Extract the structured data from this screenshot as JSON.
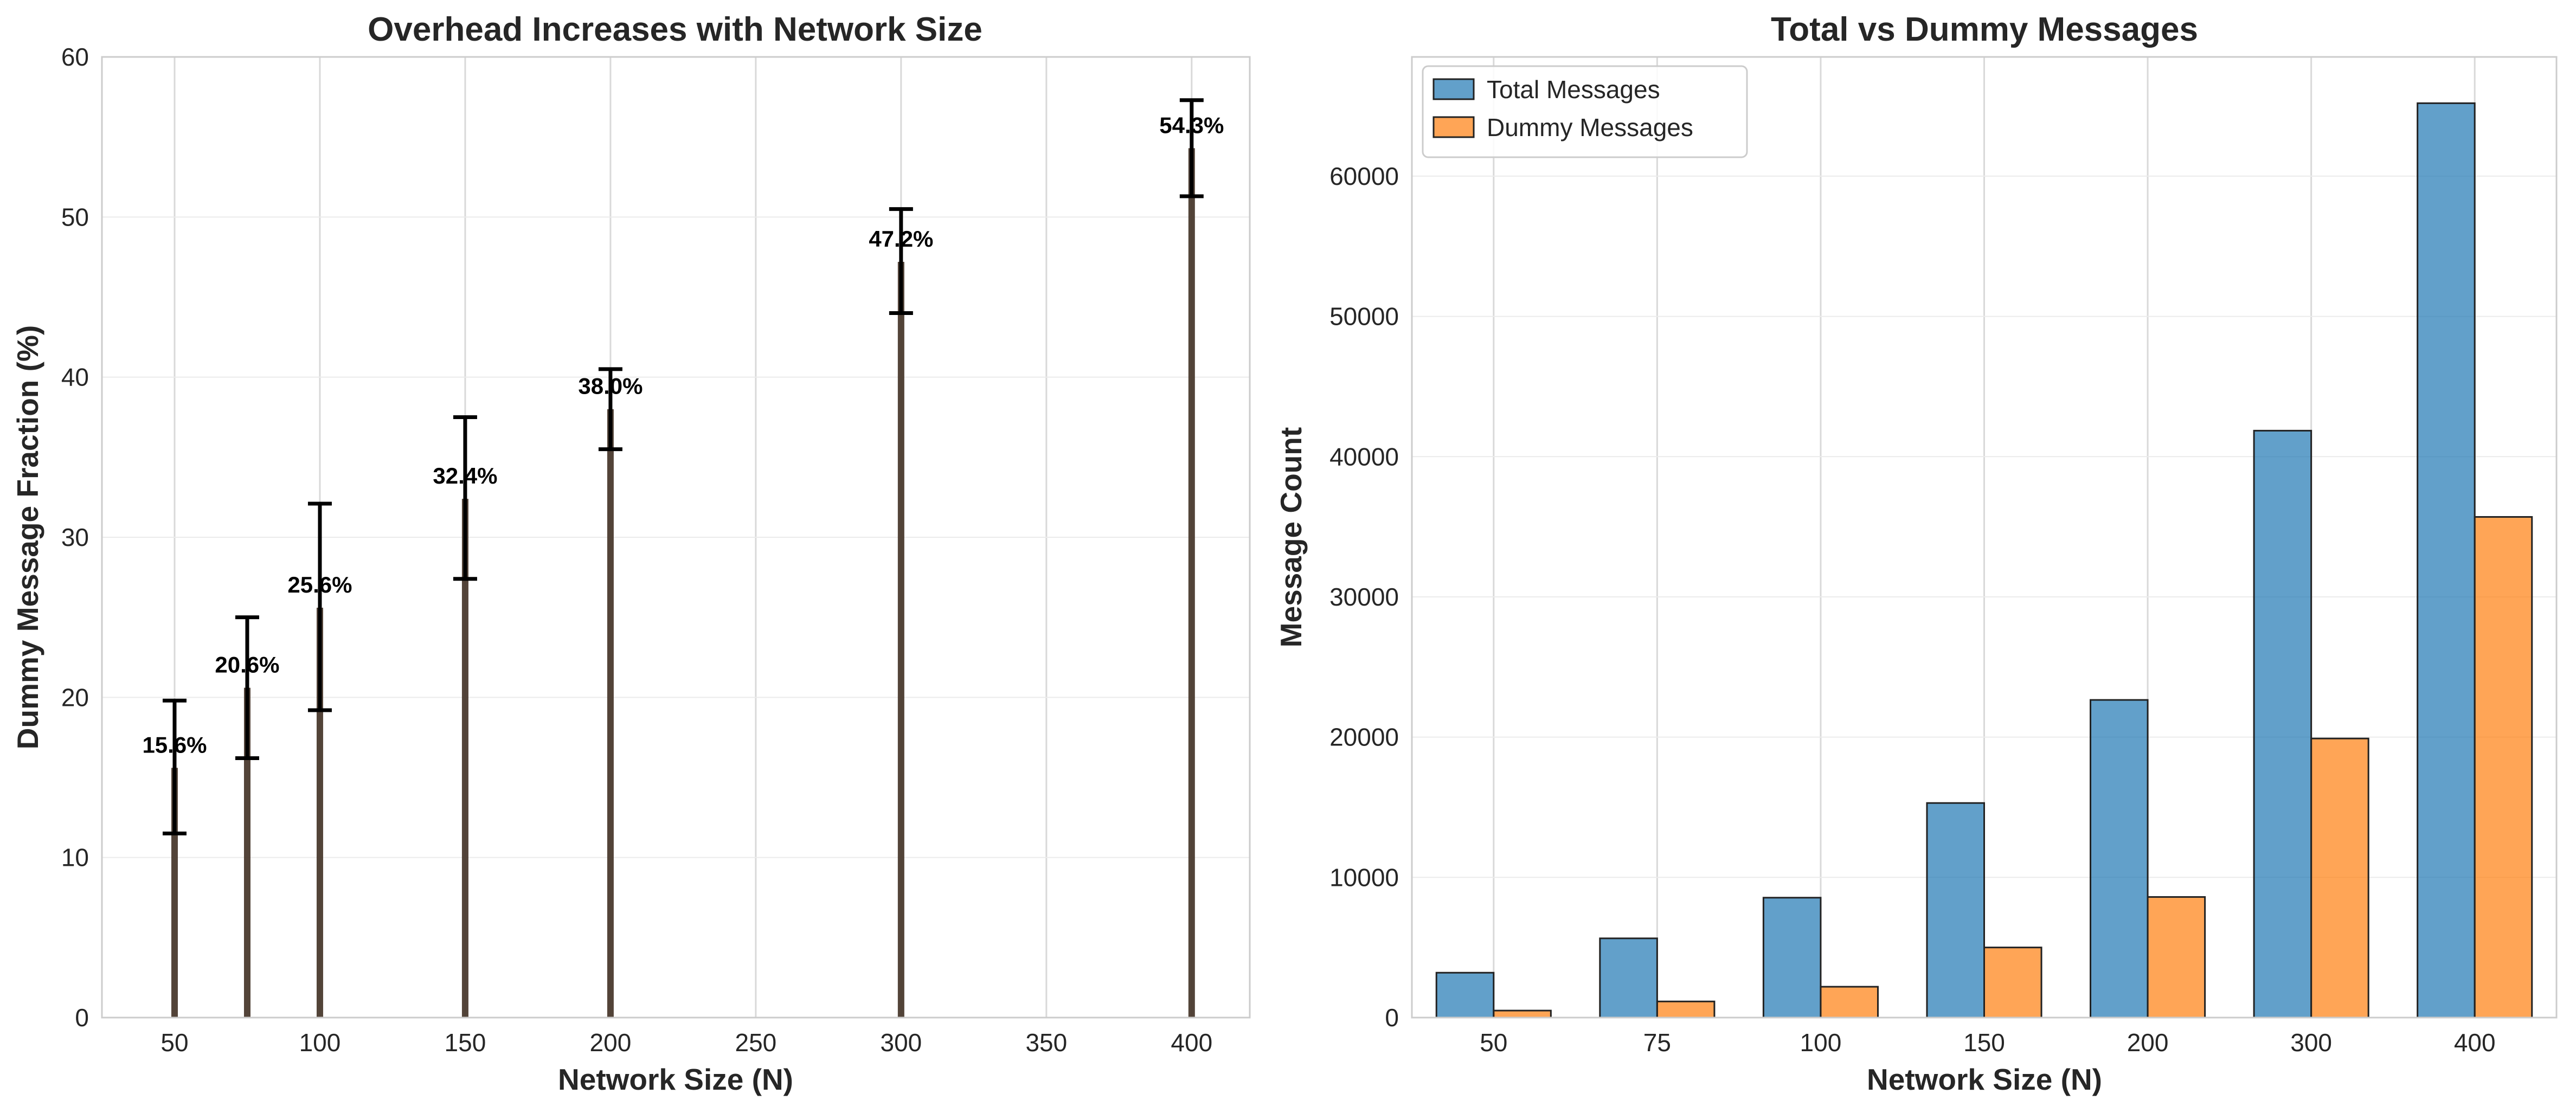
{
  "chart_data": [
    {
      "type": "bar",
      "title": "Overhead Increases with Network Size",
      "xlabel": "Network Size (N)",
      "ylabel": "Dummy Message Fraction (%)",
      "xlim": [
        25,
        420
      ],
      "ylim": [
        0,
        60
      ],
      "xticks": [
        50,
        100,
        150,
        200,
        250,
        300,
        350,
        400
      ],
      "yticks": [
        0,
        10,
        20,
        30,
        40,
        50,
        60
      ],
      "grid": true,
      "x": [
        50,
        75,
        100,
        150,
        200,
        300,
        400
      ],
      "values": [
        15.6,
        20.6,
        25.6,
        32.4,
        38.0,
        47.2,
        54.3
      ],
      "error_low": [
        11.5,
        16.2,
        19.2,
        27.4,
        35.5,
        44.0,
        51.3
      ],
      "error_high": [
        19.8,
        25.0,
        32.1,
        37.5,
        40.5,
        50.5,
        57.3
      ],
      "data_labels": [
        "15.6%",
        "20.6%",
        "25.6%",
        "32.4%",
        "38.0%",
        "47.2%",
        "54.3%"
      ],
      "bar_color": "#4a3a2e"
    },
    {
      "type": "bar",
      "title": "Total vs Dummy Messages",
      "xlabel": "Network Size (N)",
      "ylabel": "Message Count",
      "categories": [
        "50",
        "75",
        "100",
        "150",
        "200",
        "300",
        "400"
      ],
      "ylim": [
        0,
        68500
      ],
      "yticks": [
        0,
        10000,
        20000,
        30000,
        40000,
        50000,
        60000
      ],
      "grid": true,
      "legend_position": "top-left",
      "series": [
        {
          "name": "Total Messages",
          "color": "#1f77b4",
          "values": [
            3200,
            5650,
            8550,
            15300,
            22650,
            41850,
            65200
          ]
        },
        {
          "name": "Dummy Messages",
          "color": "#ff7f0e",
          "values": [
            500,
            1150,
            2200,
            5000,
            8600,
            19900,
            35700
          ]
        }
      ]
    }
  ]
}
